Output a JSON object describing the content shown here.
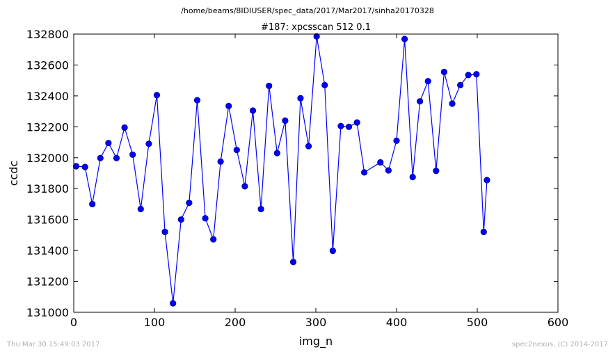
{
  "header": {
    "path": "/home/beams/8IDIUSER/spec_data/2017/Mar2017/sinha20170328"
  },
  "footer": {
    "timestamp": "Thu Mar 30 15:49:03 2017",
    "credit": "spec2nexus, (C) 2014-2017"
  },
  "chart_data": {
    "type": "line",
    "title": "#187: xpcsscan 512 0.1",
    "xlabel": "img_n",
    "ylabel": "ccdc",
    "xlim": [
      0,
      600
    ],
    "ylim": [
      131000,
      132800
    ],
    "xticks": [
      0,
      100,
      200,
      300,
      400,
      500,
      600
    ],
    "yticks": [
      131000,
      131200,
      131400,
      131600,
      131800,
      132000,
      132200,
      132400,
      132600,
      132800
    ],
    "grid": false,
    "series_color": "#0000ff",
    "marker": "circle",
    "x": [
      3,
      14,
      23,
      33,
      43,
      53,
      63,
      73,
      83,
      93,
      103,
      113,
      123,
      133,
      143,
      153,
      163,
      173,
      182,
      192,
      202,
      212,
      222,
      232,
      242,
      252,
      262,
      272,
      281,
      291,
      301,
      311,
      321,
      331,
      341,
      351,
      360,
      380,
      390,
      400,
      410,
      420,
      429,
      439,
      449,
      459,
      469,
      479,
      489,
      499,
      508,
      512
    ],
    "y": [
      131945,
      131940,
      131700,
      131998,
      132095,
      131998,
      132195,
      132020,
      131668,
      132090,
      132405,
      131520,
      131058,
      131600,
      131708,
      132372,
      131608,
      131472,
      131975,
      132335,
      132050,
      131815,
      132305,
      131668,
      132465,
      132030,
      132240,
      131325,
      132385,
      132075,
      132785,
      132470,
      131398,
      132205,
      132200,
      132228,
      131905,
      131970,
      131918,
      132110,
      132768,
      131875,
      132365,
      132495,
      131915,
      132555,
      132350,
      132470,
      132535,
      132540,
      131520,
      131855
    ]
  }
}
